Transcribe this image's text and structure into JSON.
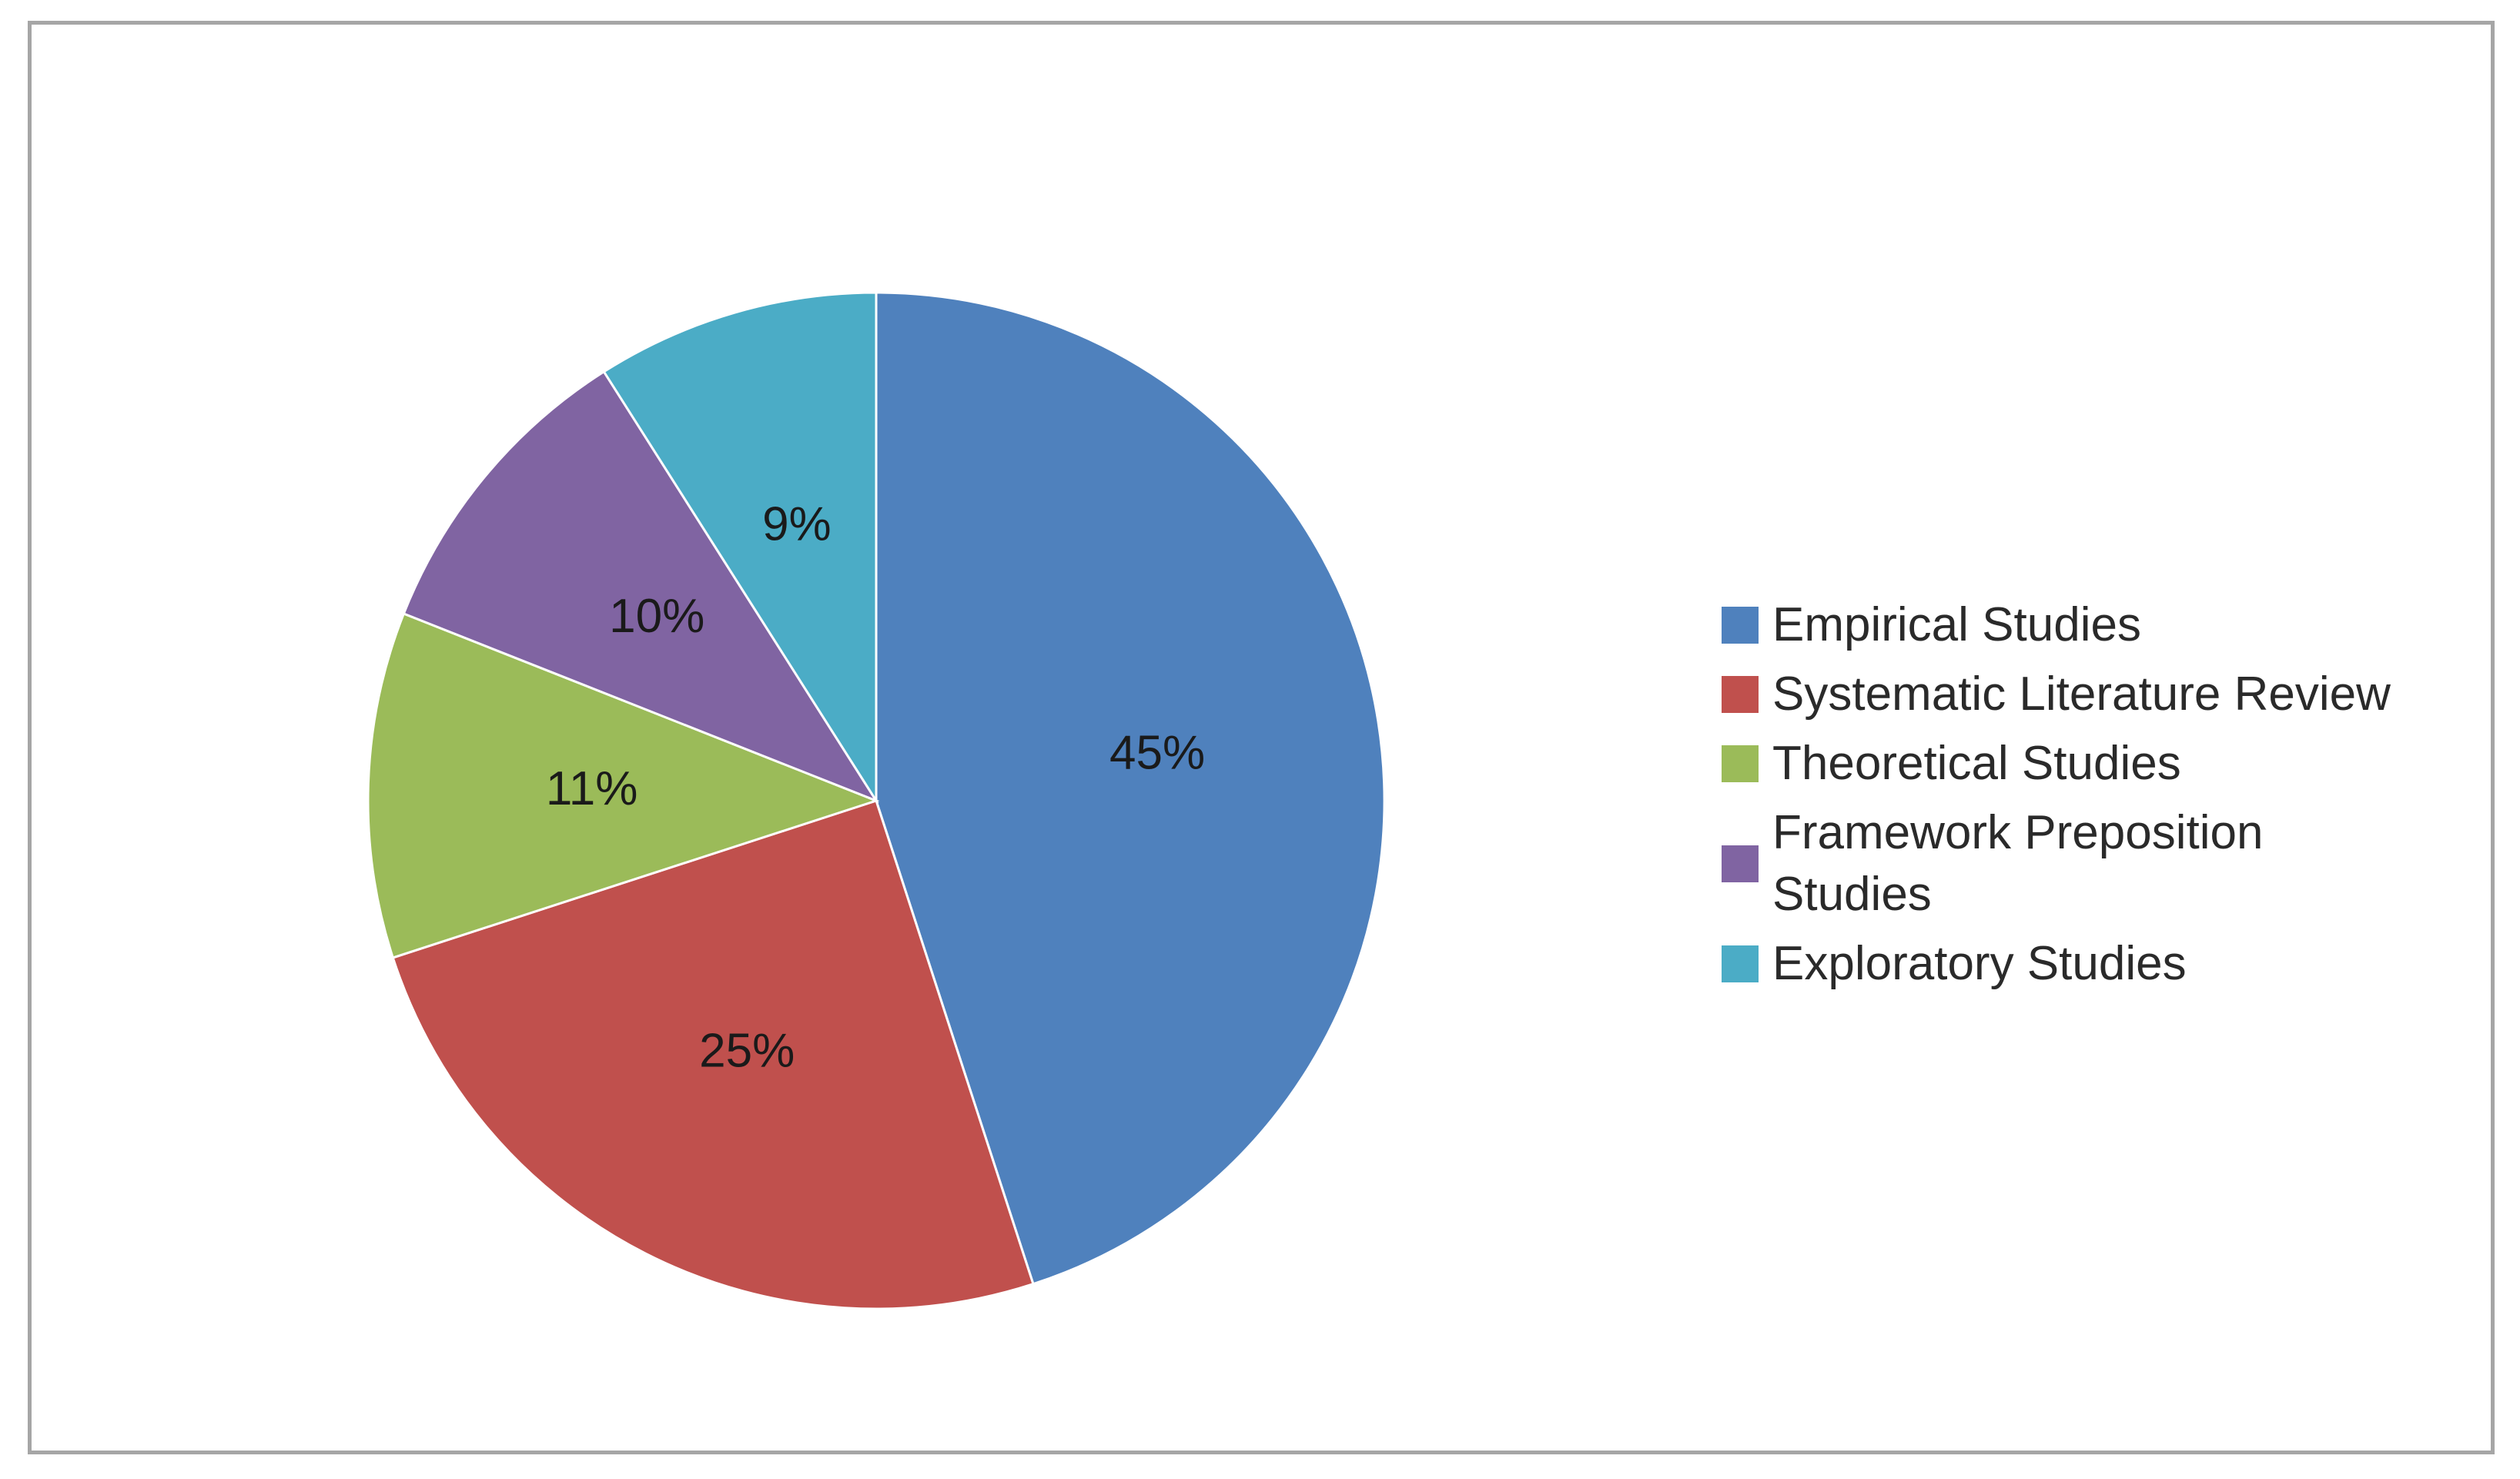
{
  "chart_data": {
    "type": "pie",
    "slices": [
      {
        "label": "Empirical Studies",
        "value": 45,
        "display": "45%",
        "color": "#4F81BD"
      },
      {
        "label": "Systematic Literature Review",
        "value": 25,
        "display": "25%",
        "color": "#C0504D"
      },
      {
        "label": "Theoretical Studies",
        "value": 11,
        "display": "11%",
        "color": "#9BBB59"
      },
      {
        "label": "Framework Preposition Studies",
        "value": 10,
        "display": "10%",
        "color": "#8064A2"
      },
      {
        "label": "Exploratory Studies",
        "value": 9,
        "display": "9%",
        "color": "#4BACC6"
      }
    ],
    "start": "12 o'clock",
    "direction": "clockwise",
    "legend": "right",
    "title": ""
  },
  "legend": {
    "items": [
      {
        "label": "Empirical Studies",
        "color": "#4F81BD"
      },
      {
        "label": "Systematic Literature Review",
        "color": "#C0504D"
      },
      {
        "label": "Theoretical Studies",
        "color": "#9BBB59"
      },
      {
        "label": "Framework Preposition Studies",
        "color": "#8064A2"
      },
      {
        "label": "Exploratory Studies",
        "color": "#4BACC6"
      }
    ]
  }
}
